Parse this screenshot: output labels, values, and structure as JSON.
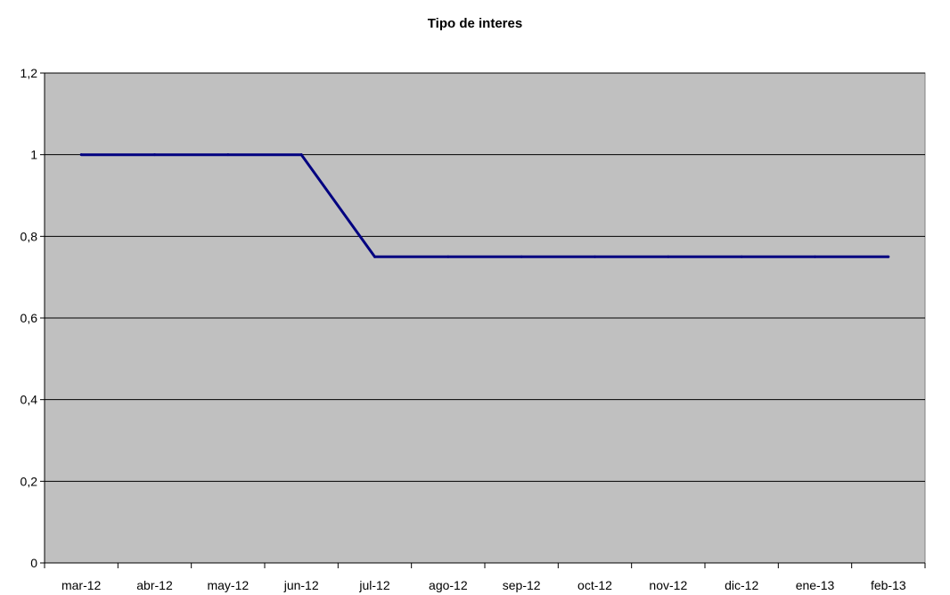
{
  "chart_data": {
    "type": "line",
    "title": "Tipo de interes",
    "xlabel": "",
    "ylabel": "",
    "categories": [
      "mar-12",
      "abr-12",
      "may-12",
      "jun-12",
      "jul-12",
      "ago-12",
      "sep-12",
      "oct-12",
      "nov-12",
      "dic-12",
      "ene-13",
      "feb-13"
    ],
    "series": [
      {
        "values": [
          1,
          1,
          1,
          1,
          0.75,
          0.75,
          0.75,
          0.75,
          0.75,
          0.75,
          0.75,
          0.75
        ]
      }
    ],
    "ylim": [
      0,
      1.2
    ],
    "yticks": [
      "0",
      "0,2",
      "0,4",
      "0,6",
      "0,8",
      "1",
      "1,2"
    ],
    "ytick_values": [
      0,
      0.2,
      0.4,
      0.6,
      0.8,
      1,
      1.2
    ],
    "grid": true,
    "legend": "none",
    "colors": {
      "plot_background": "#c0c0c0",
      "line": "#000080",
      "gridline": "#000000"
    }
  }
}
